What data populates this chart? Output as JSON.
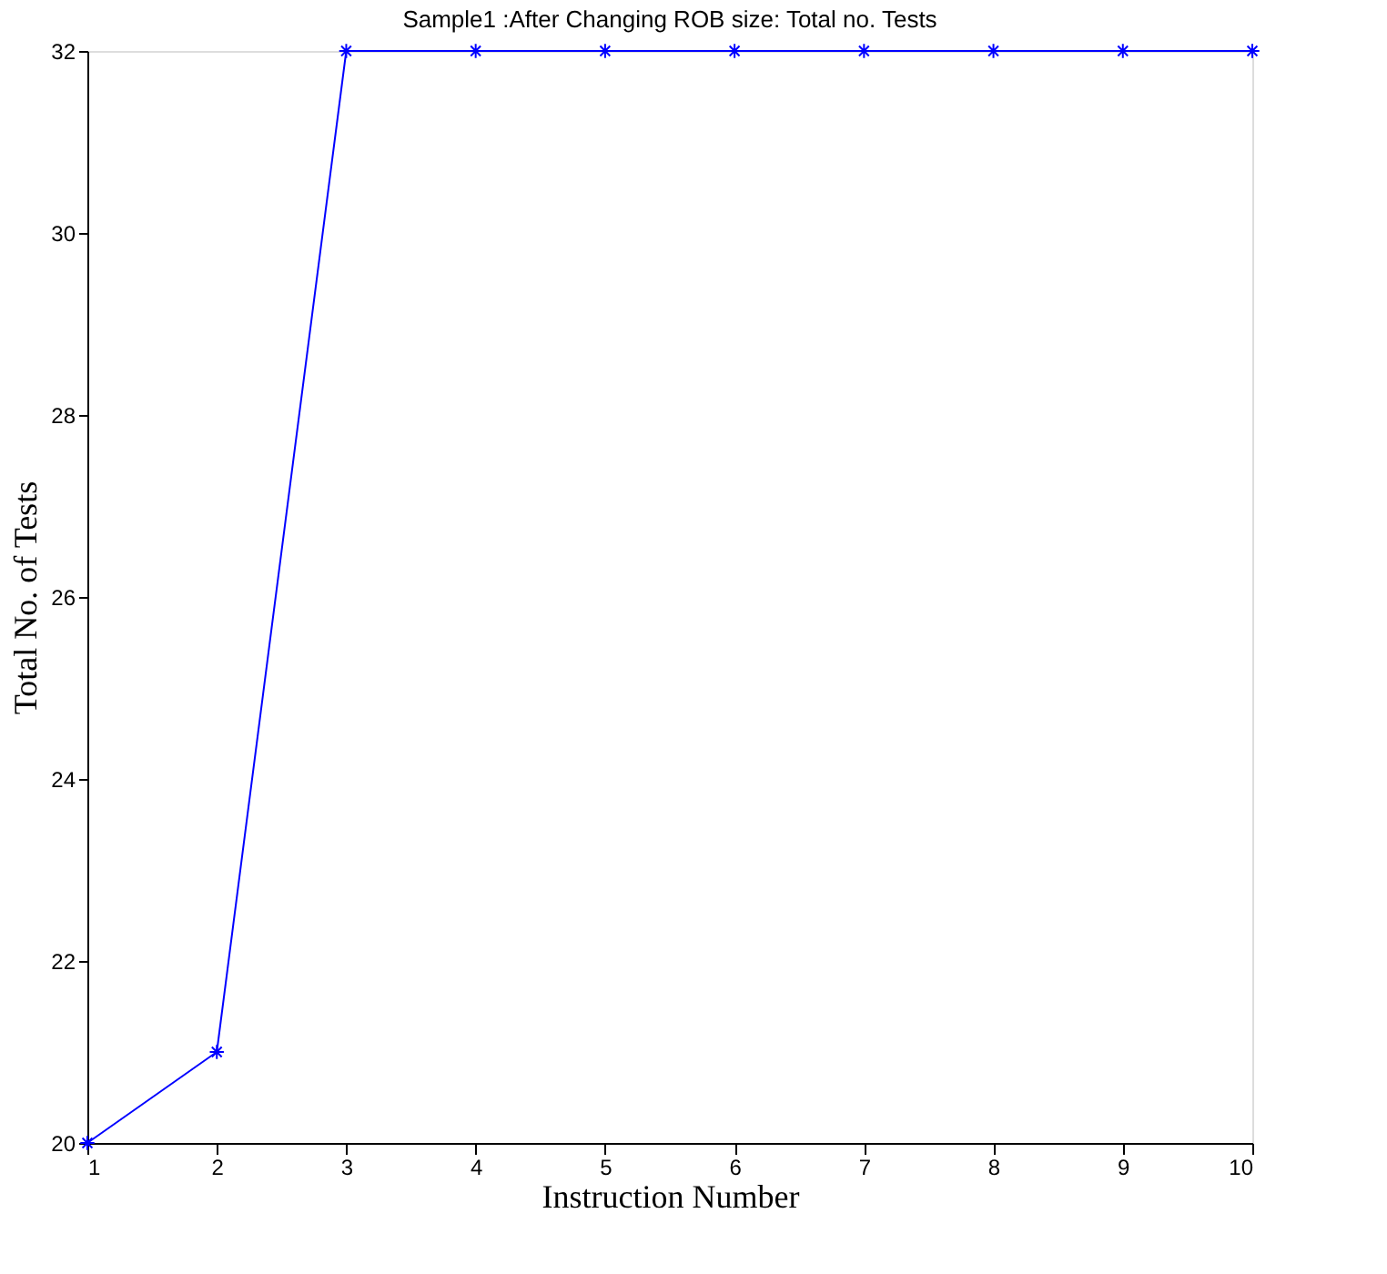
{
  "chart_data": {
    "type": "line",
    "title": "Sample1 :After Changing ROB size: Total no. Tests",
    "xlabel": "Instruction Number",
    "ylabel": "Total No.  of Tests",
    "x": [
      1,
      2,
      3,
      4,
      5,
      6,
      7,
      8,
      9,
      10
    ],
    "series": [
      {
        "color": "#0000ff",
        "values": [
          20,
          21,
          32,
          32,
          32,
          32,
          32,
          32,
          32,
          32
        ]
      }
    ],
    "xlim": [
      1,
      10
    ],
    "xticks": [
      1,
      2,
      3,
      4,
      5,
      6,
      7,
      8,
      9,
      10
    ],
    "ylim": [
      20,
      32
    ],
    "yticks": [
      20,
      22,
      24,
      26,
      28,
      30,
      32
    ],
    "grid": false,
    "marker": "cross",
    "line_style": "solid"
  }
}
